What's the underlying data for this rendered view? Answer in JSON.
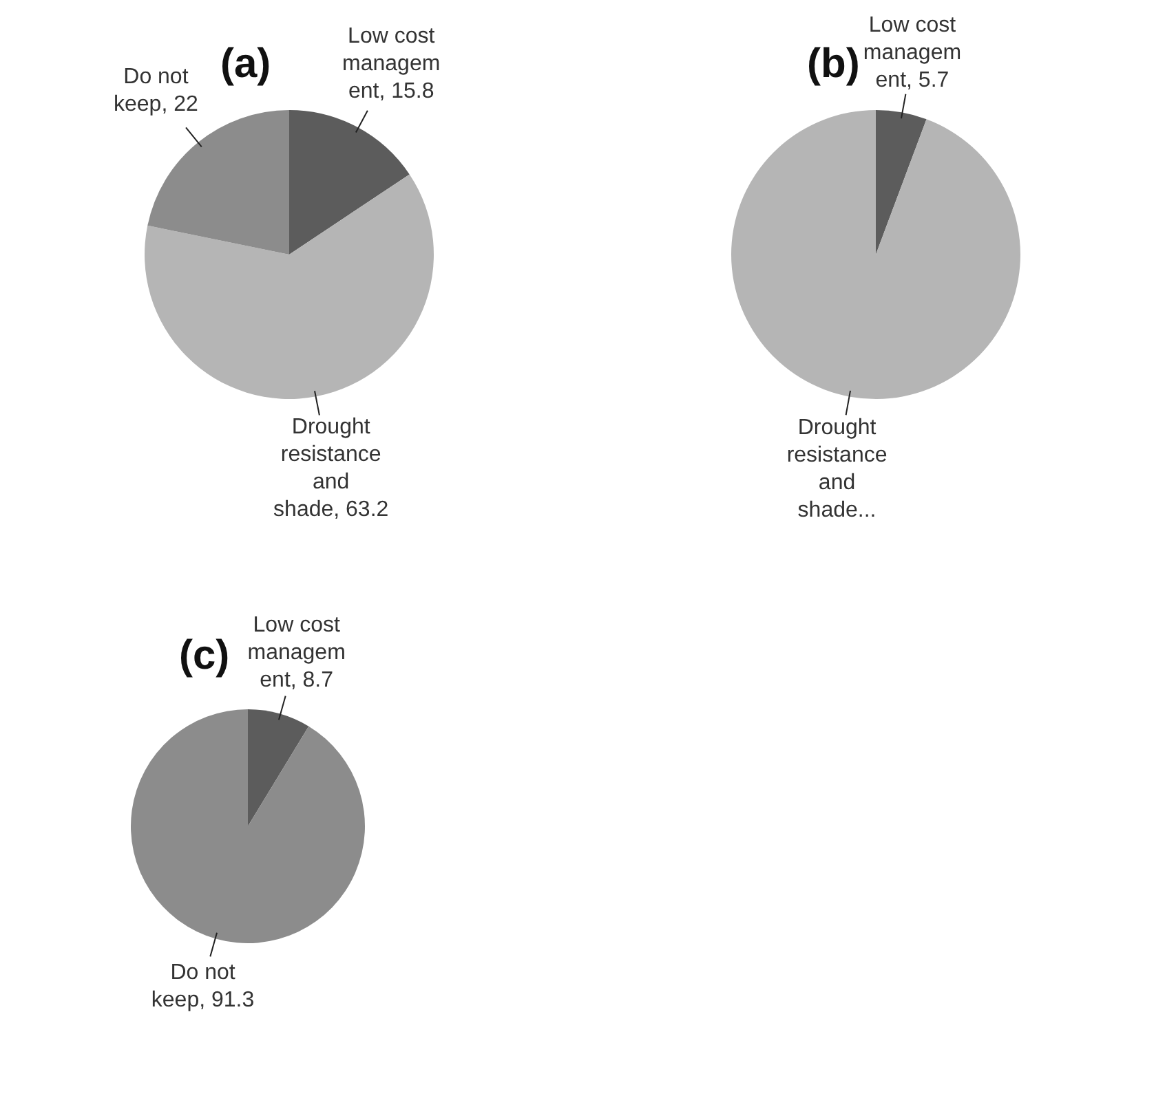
{
  "chart_data": [
    {
      "type": "pie",
      "title": "(a)",
      "categories": [
        "Low cost management",
        "Drought resistance and shade",
        "Do not keep"
      ],
      "values": [
        15.8,
        63.2,
        22
      ],
      "colors": [
        "#5c5c5c",
        "#b5b5b5",
        "#8c8c8c"
      ],
      "value_labels": [
        "15.8",
        "63.2",
        "22"
      ],
      "legend": false
    },
    {
      "type": "pie",
      "title": "(b)",
      "categories": [
        "Low cost management",
        "Drought resistance and shade..."
      ],
      "values": [
        5.7,
        94.3
      ],
      "colors": [
        "#5c5c5c",
        "#b5b5b5"
      ],
      "value_labels": [
        "5.7",
        null
      ],
      "legend": false
    },
    {
      "type": "pie",
      "title": "(c)",
      "categories": [
        "Low cost management",
        "Do not keep"
      ],
      "values": [
        8.7,
        91.3
      ],
      "colors": [
        "#5c5c5c",
        "#8c8c8c"
      ],
      "value_labels": [
        "8.7",
        "91.3"
      ],
      "legend": false
    }
  ]
}
